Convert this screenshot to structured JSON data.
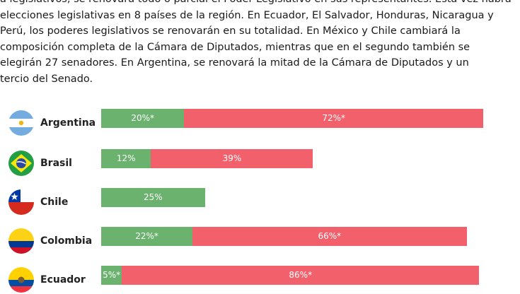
{
  "intro_lines": [
    "a legislativos, se renovará todo o parcial el Poder Legislativo en sus representantes. Esta vez habrá",
    "elecciones legislativas en 8 países de la región. En Ecuador, El Salvador, Honduras, Nicaragua y",
    "Perú, los poderes legislativos se renovarán en su totalidad. En México y Chile cambiará la",
    "composición completa de la Cámara de Diputados, mientras que en el segundo también se",
    "elegirán 27 senadores. En Argentina, se renovará la mitad de la Cámara de Diputados y un",
    "tercio del Senado."
  ],
  "colors": {
    "green": "#6ab26e",
    "red": "#f2606b"
  },
  "chart_data": {
    "type": "bar",
    "orientation": "horizontal",
    "stacked": true,
    "categories": [
      "Argentina",
      "Brasil",
      "Chile",
      "Colombia",
      "Ecuador"
    ],
    "series": [
      {
        "values": [
          20,
          12,
          25,
          22,
          5
        ],
        "labels": [
          "20%*",
          "12%",
          "25%",
          "22%*",
          "5%*"
        ]
      },
      {
        "values": [
          72,
          39,
          null,
          66,
          86
        ],
        "labels": [
          "72%*",
          "39%",
          "",
          "66%*",
          "86%*"
        ]
      }
    ],
    "xlim": [
      0,
      100
    ],
    "title": "",
    "xlabel": "",
    "ylabel": "",
    "grid": false,
    "legend": "none"
  }
}
